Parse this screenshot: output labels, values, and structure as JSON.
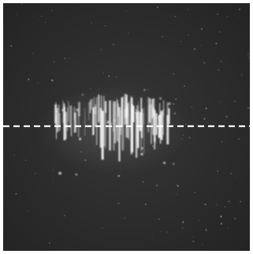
{
  "image": {
    "subject": "streak-photograph",
    "colors": {
      "background": "#2e2e2e",
      "streak": "#f2f2f2",
      "reference_line": "#ffffff",
      "border": "#ffffff"
    },
    "elements": [
      "bright-vertical-streaks",
      "dashed-horizontal-reference-line",
      "scattered-noise-speckles"
    ]
  }
}
